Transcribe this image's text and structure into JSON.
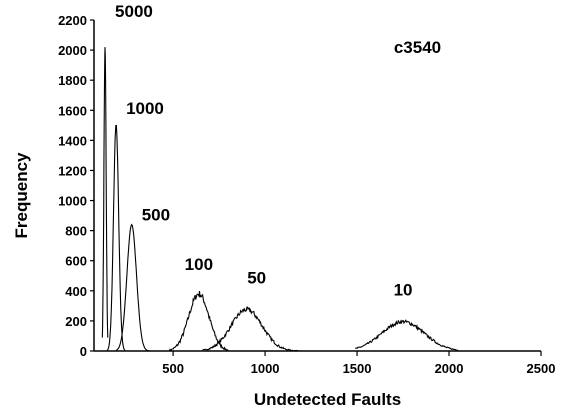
{
  "chart_data": {
    "type": "line",
    "title": "c3540",
    "xlabel": "Undetected Faults",
    "ylabel": "Frequency",
    "xlim": [
      70,
      2500
    ],
    "ylim": [
      0,
      2200
    ],
    "x_ticks": [
      500,
      1000,
      1500,
      2000,
      2500
    ],
    "y_ticks": [
      0,
      200,
      400,
      600,
      800,
      1000,
      1200,
      1400,
      1600,
      1800,
      2000,
      2200
    ],
    "grid": false,
    "legend": "none",
    "series": [
      {
        "label": "5000",
        "peak_x": 130,
        "peak_y": 2020,
        "spread": 6,
        "x_range": [
          115,
          145
        ]
      },
      {
        "label": "1000",
        "peak_x": 190,
        "peak_y": 1510,
        "spread": 14,
        "x_range": [
          140,
          240
        ]
      },
      {
        "label": "500",
        "peak_x": 275,
        "peak_y": 840,
        "spread": 26,
        "x_range": [
          190,
          370
        ]
      },
      {
        "label": "100",
        "peak_x": 640,
        "peak_y": 380,
        "spread": 55,
        "x_range": [
          480,
          800
        ]
      },
      {
        "label": "50",
        "peak_x": 900,
        "peak_y": 275,
        "spread": 85,
        "x_range": [
          660,
          1200
        ]
      },
      {
        "label": "10",
        "peak_x": 1750,
        "peak_y": 195,
        "spread": 115,
        "x_range": [
          1490,
          2050
        ]
      }
    ]
  }
}
